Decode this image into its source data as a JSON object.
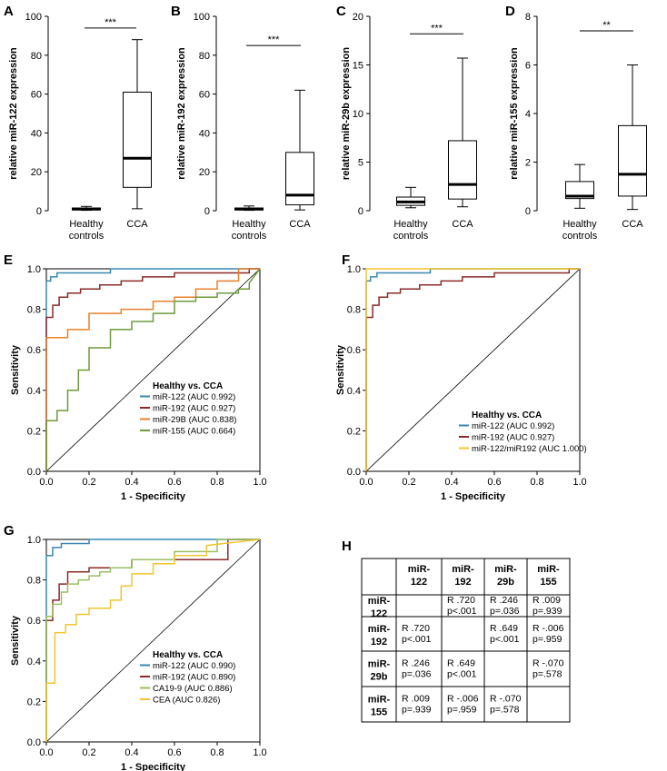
{
  "chart_data": [
    {
      "panel": "A",
      "type": "box",
      "ylabel": "relative miR-122 expression",
      "ylim": [
        0,
        100
      ],
      "yticks": [
        0,
        20,
        40,
        60,
        80,
        100
      ],
      "categories": [
        "Healthy controls",
        "CCA"
      ],
      "category_lines": [
        [
          "Healthy",
          "controls"
        ],
        [
          "CCA"
        ]
      ],
      "boxes": [
        {
          "min": 0.2,
          "q1": 0.4,
          "median": 0.8,
          "q3": 1.4,
          "max": 2.2
        },
        {
          "min": 1.0,
          "q1": 12,
          "median": 27,
          "q3": 61,
          "max": 88
        }
      ],
      "significance": "***",
      "sig_value": 94
    },
    {
      "panel": "B",
      "type": "box",
      "ylabel": "relative miR-192 expression",
      "ylim": [
        0,
        100
      ],
      "yticks": [
        0,
        20,
        40,
        60,
        80,
        100
      ],
      "categories": [
        "Healthy controls",
        "CCA"
      ],
      "category_lines": [
        [
          "Healthy",
          "controls"
        ],
        [
          "CCA"
        ]
      ],
      "boxes": [
        {
          "min": 0.2,
          "q1": 0.4,
          "median": 0.8,
          "q3": 1.4,
          "max": 2.4
        },
        {
          "min": 0.4,
          "q1": 3,
          "median": 8,
          "q3": 30,
          "max": 62
        }
      ],
      "significance": "***",
      "sig_value": 85
    },
    {
      "panel": "C",
      "type": "box",
      "ylabel": "relative miR-29b expression",
      "ylim": [
        0,
        20
      ],
      "yticks": [
        0,
        5,
        10,
        15,
        20
      ],
      "categories": [
        "Healthy controls",
        "CCA"
      ],
      "category_lines": [
        [
          "Healthy",
          "controls"
        ],
        [
          "CCA"
        ]
      ],
      "boxes": [
        {
          "min": 0.3,
          "q1": 0.55,
          "median": 0.9,
          "q3": 1.4,
          "max": 2.4
        },
        {
          "min": 0.4,
          "q1": 1.2,
          "median": 2.7,
          "q3": 7.2,
          "max": 15.7
        }
      ],
      "significance": "***",
      "sig_value": 18.2
    },
    {
      "panel": "D",
      "type": "box",
      "ylabel": "relative miR-155 expression",
      "ylim": [
        0,
        8
      ],
      "yticks": [
        0,
        2,
        4,
        6,
        8
      ],
      "categories": [
        "Healthy controls",
        "CCA"
      ],
      "category_lines": [
        [
          "Healthy",
          "controls"
        ],
        [
          "CCA"
        ]
      ],
      "boxes": [
        {
          "min": 0.1,
          "q1": 0.5,
          "median": 0.6,
          "q3": 1.2,
          "max": 1.9
        },
        {
          "min": 0.05,
          "q1": 0.6,
          "median": 1.5,
          "q3": 3.5,
          "max": 6.0
        }
      ],
      "significance": "**",
      "sig_value": 7.4
    },
    {
      "panel": "E",
      "type": "line",
      "xlabel": "1 - Specificity",
      "ylabel": "Sensitivity",
      "xlim": [
        0,
        1
      ],
      "ylim": [
        0,
        1
      ],
      "ticks": [
        "0.0",
        "0.2",
        "0.4",
        "0.6",
        "0.8",
        "1.0"
      ],
      "legend_title": "Healthy vs. CCA",
      "series": [
        {
          "name": "miR-122",
          "auc": "(AUC 0.992)",
          "color": "#3a87b0",
          "x": [
            0,
            0,
            0.02,
            0.02,
            0.05,
            0.05,
            0.3,
            0.3,
            1
          ],
          "y": [
            0,
            0.94,
            0.94,
            0.96,
            0.96,
            0.98,
            0.98,
            1,
            1
          ]
        },
        {
          "name": "miR-192",
          "auc": "(AUC 0.927)",
          "color": "#8b2a2a",
          "x": [
            0,
            0,
            0.03,
            0.03,
            0.06,
            0.06,
            0.1,
            0.1,
            0.16,
            0.16,
            0.25,
            0.25,
            0.35,
            0.35,
            0.45,
            0.45,
            0.6,
            0.6,
            0.95,
            0.95,
            1
          ],
          "y": [
            0,
            0.76,
            0.76,
            0.82,
            0.82,
            0.86,
            0.86,
            0.88,
            0.88,
            0.9,
            0.9,
            0.92,
            0.92,
            0.94,
            0.94,
            0.96,
            0.96,
            0.98,
            0.98,
            1,
            1
          ]
        },
        {
          "name": "miR-29B",
          "auc": "(AUC 0.838)",
          "color": "#e8802a",
          "x": [
            0,
            0,
            0.1,
            0.1,
            0.2,
            0.2,
            0.35,
            0.35,
            0.5,
            0.5,
            0.6,
            0.6,
            0.7,
            0.7,
            0.8,
            0.8,
            0.9,
            0.9,
            1
          ],
          "y": [
            0,
            0.66,
            0.66,
            0.7,
            0.7,
            0.78,
            0.78,
            0.8,
            0.8,
            0.84,
            0.84,
            0.86,
            0.86,
            0.9,
            0.9,
            0.94,
            0.94,
            1,
            1
          ]
        },
        {
          "name": "miR-155",
          "auc": "(AUC 0.664)",
          "color": "#6e9a3a",
          "x": [
            0,
            0,
            0.05,
            0.05,
            0.1,
            0.1,
            0.15,
            0.15,
            0.2,
            0.2,
            0.3,
            0.3,
            0.4,
            0.4,
            0.5,
            0.5,
            0.6,
            0.6,
            0.7,
            0.7,
            0.8,
            0.8,
            0.9,
            0.9,
            0.95,
            0.95,
            1
          ],
          "y": [
            0,
            0.25,
            0.25,
            0.3,
            0.3,
            0.4,
            0.4,
            0.5,
            0.5,
            0.61,
            0.61,
            0.7,
            0.7,
            0.74,
            0.74,
            0.78,
            0.78,
            0.84,
            0.84,
            0.86,
            0.86,
            0.88,
            0.88,
            0.9,
            0.9,
            0.93,
            1
          ]
        }
      ]
    },
    {
      "panel": "F",
      "type": "line",
      "xlabel": "1 - Specificity",
      "ylabel": "Sensitivity",
      "xlim": [
        0,
        1
      ],
      "ylim": [
        0,
        1
      ],
      "ticks": [
        "0.0",
        "0.2",
        "0.4",
        "0.6",
        "0.8",
        "1.0"
      ],
      "legend_title": "Healthy vs. CCA",
      "series": [
        {
          "name": "miR-122",
          "auc": "(AUC 0.992)",
          "color": "#3a87b0",
          "x": [
            0,
            0,
            0.02,
            0.02,
            0.05,
            0.05,
            0.3,
            0.3,
            1
          ],
          "y": [
            0,
            0.94,
            0.94,
            0.96,
            0.96,
            0.98,
            0.98,
            1,
            1
          ]
        },
        {
          "name": "miR-192",
          "auc": "(AUC 0.927)",
          "color": "#8b2a2a",
          "x": [
            0,
            0,
            0.03,
            0.03,
            0.06,
            0.06,
            0.1,
            0.1,
            0.16,
            0.16,
            0.25,
            0.25,
            0.35,
            0.35,
            0.45,
            0.45,
            0.6,
            0.6,
            0.95,
            0.95,
            1
          ],
          "y": [
            0,
            0.76,
            0.76,
            0.82,
            0.82,
            0.86,
            0.86,
            0.88,
            0.88,
            0.9,
            0.9,
            0.92,
            0.92,
            0.94,
            0.94,
            0.96,
            0.96,
            0.98,
            0.98,
            1,
            1
          ]
        },
        {
          "name": "miR-122/miR192",
          "auc": "(AUC 1.000)",
          "color": "#f2c530",
          "x": [
            0,
            0,
            1
          ],
          "y": [
            0,
            1,
            1
          ]
        }
      ]
    },
    {
      "panel": "G",
      "type": "line",
      "xlabel": "1 - Specificity",
      "ylabel": "Sensitivity",
      "xlim": [
        0,
        1
      ],
      "ylim": [
        0,
        1
      ],
      "ticks": [
        "0.0",
        "0.2",
        "0.4",
        "0.6",
        "0.8",
        "1.0"
      ],
      "legend_title": "Healthy vs. CCA",
      "series": [
        {
          "name": "miR-122",
          "auc": "(AUC 0.990)",
          "color": "#3a87b0",
          "x": [
            0,
            0,
            0.03,
            0.03,
            0.07,
            0.07,
            0.2,
            0.2,
            1
          ],
          "y": [
            0,
            0.92,
            0.92,
            0.96,
            0.96,
            0.98,
            0.98,
            1,
            1
          ]
        },
        {
          "name": "miR-192",
          "auc": "(AUC 0.890)",
          "color": "#8b2a2a",
          "x": [
            0,
            0,
            0.03,
            0.03,
            0.06,
            0.06,
            0.1,
            0.1,
            0.2,
            0.2,
            0.4,
            0.4,
            0.85,
            0.85,
            1
          ],
          "y": [
            0,
            0.6,
            0.6,
            0.7,
            0.7,
            0.78,
            0.78,
            0.84,
            0.84,
            0.86,
            0.86,
            0.9,
            0.9,
            1,
            1
          ]
        },
        {
          "name": "CA19-9",
          "auc": "(AUC 0.886)",
          "color": "#9bbe62",
          "x": [
            0,
            0,
            0.03,
            0.03,
            0.07,
            0.07,
            0.1,
            0.1,
            0.15,
            0.15,
            0.2,
            0.2,
            0.25,
            0.25,
            0.3,
            0.3,
            0.4,
            0.4,
            0.6,
            0.6,
            0.8,
            0.8,
            1
          ],
          "y": [
            0,
            0.62,
            0.62,
            0.68,
            0.68,
            0.74,
            0.74,
            0.78,
            0.78,
            0.8,
            0.8,
            0.82,
            0.82,
            0.84,
            0.84,
            0.86,
            0.86,
            0.9,
            0.9,
            0.94,
            0.94,
            1,
            1
          ]
        },
        {
          "name": "CEA",
          "auc": "(AUC 0.826)",
          "color": "#f2c530",
          "x": [
            0,
            0,
            0.04,
            0.04,
            0.09,
            0.09,
            0.14,
            0.14,
            0.2,
            0.2,
            0.3,
            0.3,
            0.35,
            0.35,
            0.4,
            0.4,
            0.5,
            0.5,
            0.6,
            0.6,
            0.75,
            0.75,
            1
          ],
          "y": [
            0,
            0.29,
            0.29,
            0.54,
            0.54,
            0.58,
            0.58,
            0.63,
            0.63,
            0.66,
            0.66,
            0.7,
            0.7,
            0.77,
            0.77,
            0.83,
            0.83,
            0.88,
            0.88,
            0.92,
            0.92,
            0.97,
            1
          ]
        }
      ]
    },
    {
      "panel": "H",
      "type": "table",
      "columns": [
        [
          "miR-",
          "122"
        ],
        [
          "miR-",
          "192"
        ],
        [
          "miR-",
          "29b"
        ],
        [
          "miR-",
          "155"
        ]
      ],
      "rows": [
        {
          "label": [
            "miR-",
            "122"
          ],
          "cells": [
            [
              "",
              ""
            ],
            [
              "R .720",
              "p<.001"
            ],
            [
              "R .246",
              "p=.036"
            ],
            [
              "R .009",
              "p=.939"
            ]
          ]
        },
        {
          "label": [
            "miR-",
            "192"
          ],
          "cells": [
            [
              "R .720",
              "p<.001"
            ],
            [
              "",
              ""
            ],
            [
              "R .649",
              "p<.001"
            ],
            [
              "R -.006",
              "p=.959"
            ]
          ]
        },
        {
          "label": [
            "miR-",
            "29b"
          ],
          "cells": [
            [
              "R .246",
              "p=.036"
            ],
            [
              "R .649",
              "p<.001"
            ],
            [
              "",
              ""
            ],
            [
              "R -.070",
              "p=.578"
            ]
          ]
        },
        {
          "label": [
            "miR-",
            "155"
          ],
          "cells": [
            [
              "R .009",
              "p=.939"
            ],
            [
              "R -.006",
              "p=.959"
            ],
            [
              "R -.070",
              "p=.578"
            ],
            [
              "",
              ""
            ]
          ]
        }
      ]
    }
  ]
}
